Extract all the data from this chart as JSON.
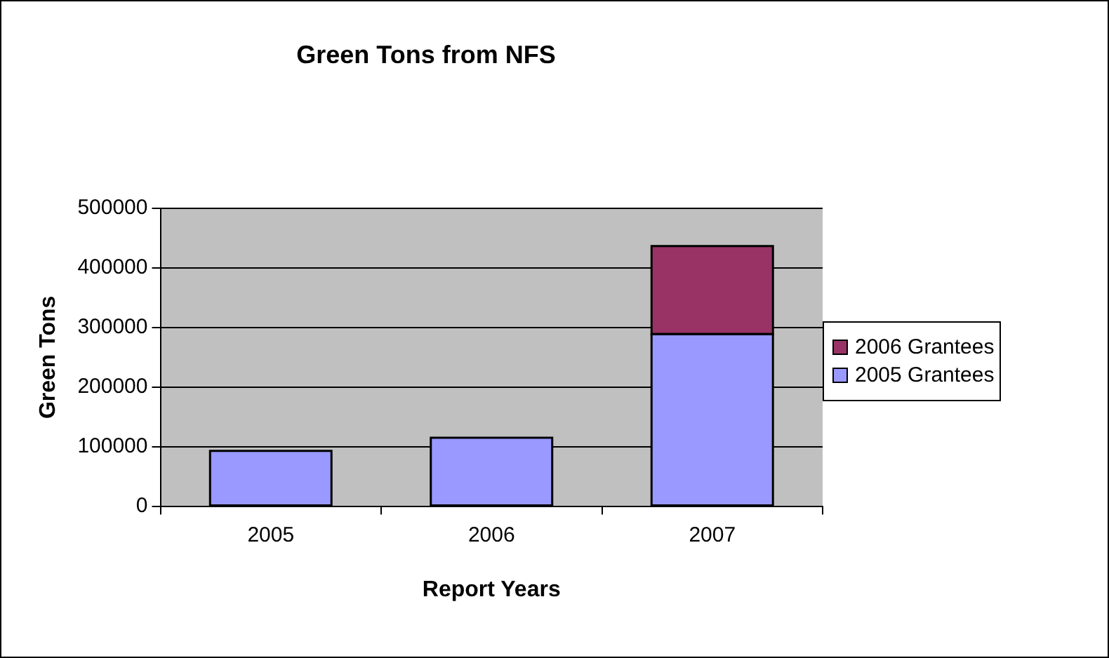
{
  "chart_data": {
    "type": "bar",
    "title": "Green Tons from NFS",
    "xlabel": "Report Years",
    "ylabel": "Green Tons",
    "categories": [
      "2005",
      "2006",
      "2007"
    ],
    "stacked": true,
    "series": [
      {
        "name": "2005 Grantees",
        "color": "#9999ff",
        "values": [
          93000,
          115000,
          289000
        ]
      },
      {
        "name": "2006 Grantees",
        "color": "#993366",
        "values": [
          null,
          null,
          148000
        ]
      }
    ],
    "ylim": [
      0,
      500000
    ],
    "yticks": [
      0,
      100000,
      200000,
      300000,
      400000,
      500000
    ],
    "grid": "y",
    "legend": "right"
  }
}
